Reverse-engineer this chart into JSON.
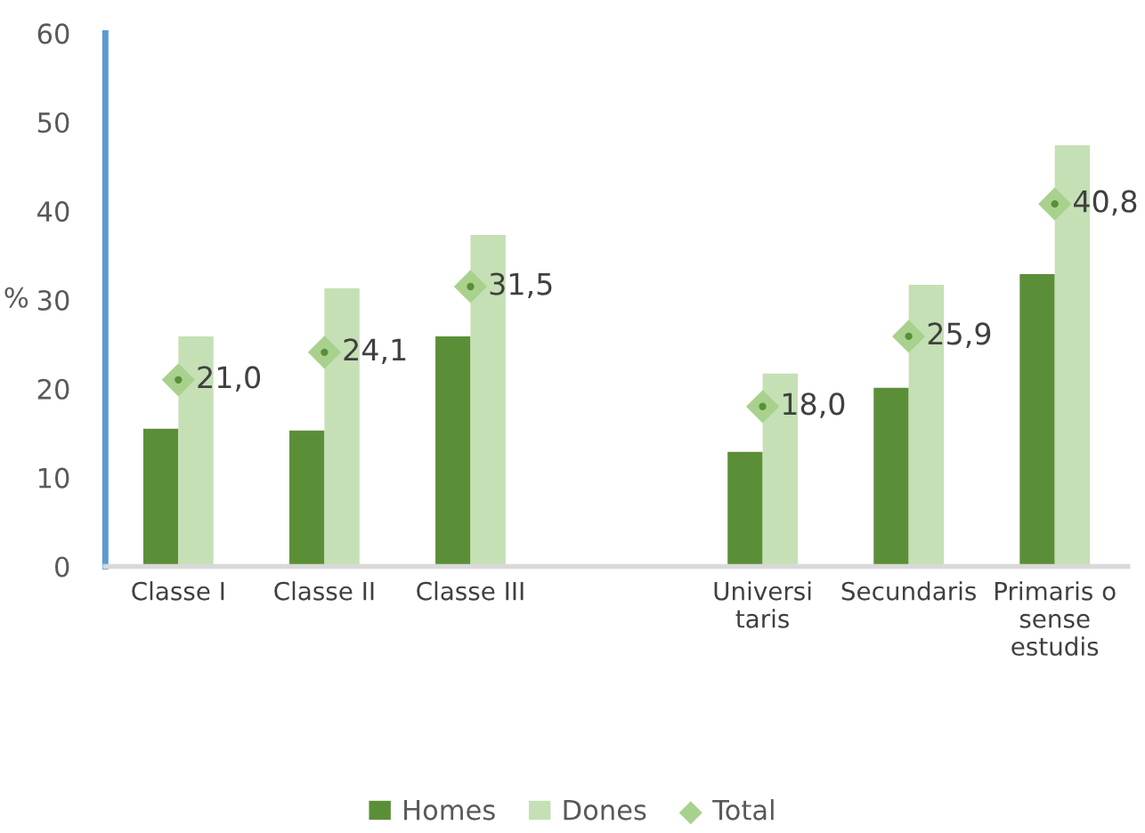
{
  "chart_data": {
    "type": "bar",
    "ylabel": "%",
    "categories": [
      "Classe I",
      "Classe II",
      "Classe III",
      null,
      "Universi\ntaris",
      "Secundaris",
      "Primaris o\nsense\nestudis"
    ],
    "series": [
      {
        "name": "Homes",
        "color": "#5b8f37",
        "values": [
          15.5,
          15.3,
          25.9,
          null,
          12.9,
          20.1,
          32.9
        ]
      },
      {
        "name": "Dones",
        "color": "#c5e0b4",
        "values": [
          25.9,
          31.3,
          37.3,
          null,
          21.7,
          31.7,
          47.4
        ]
      },
      {
        "name": "Total",
        "type": "scatter",
        "marker": "diamond",
        "color": "#a9d18e",
        "values": [
          21.0,
          24.1,
          31.5,
          null,
          18.0,
          25.9,
          40.8
        ],
        "value_labels": [
          "21,0",
          "24,1",
          "31,5",
          null,
          "18,0",
          "25,9",
          "40,8"
        ]
      }
    ],
    "ylim": [
      0,
      60
    ],
    "yticks": [
      0,
      10,
      20,
      30,
      40,
      50,
      60
    ],
    "grid": false,
    "legend": "bottom"
  }
}
